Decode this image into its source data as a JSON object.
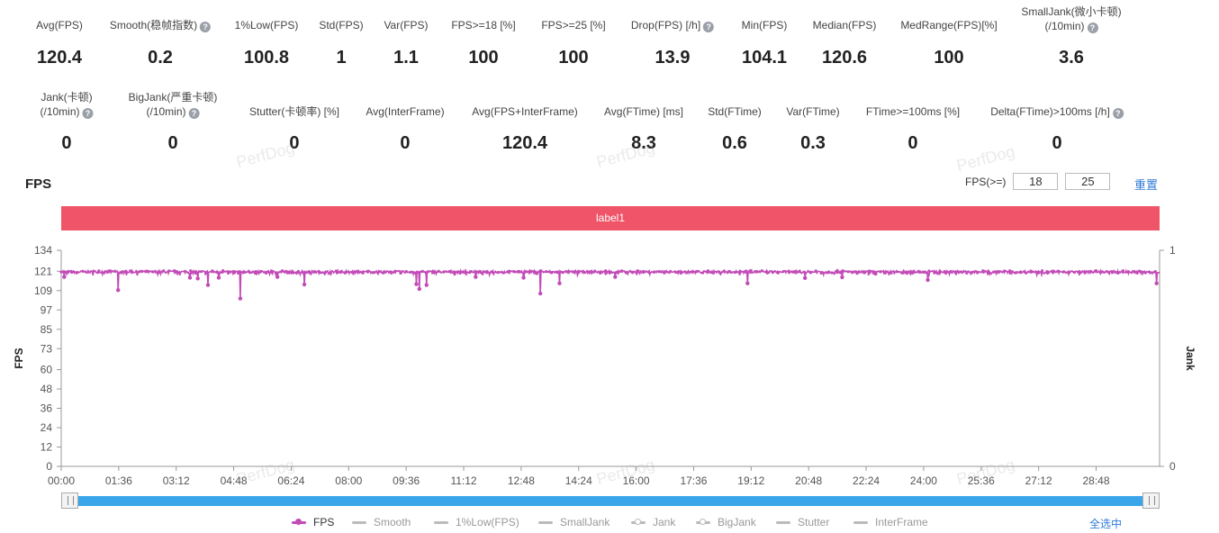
{
  "metrics_row1": [
    {
      "label": "Avg(FPS)",
      "value": "120.4",
      "x": 66,
      "help": false
    },
    {
      "label": "Smooth(稳帧指数)",
      "value": "0.2",
      "x": 178,
      "help": true
    },
    {
      "label": "1%Low(FPS)",
      "value": "100.8",
      "x": 296,
      "help": false
    },
    {
      "label": "Std(FPS)",
      "value": "1",
      "x": 379,
      "help": false
    },
    {
      "label": "Var(FPS)",
      "value": "1.1",
      "x": 451,
      "help": false
    },
    {
      "label": "FPS>=18 [%]",
      "value": "100",
      "x": 537,
      "help": false
    },
    {
      "label": "FPS>=25 [%]",
      "value": "100",
      "x": 637,
      "help": false
    },
    {
      "label": "Drop(FPS) [/h]",
      "value": "13.9",
      "x": 747,
      "help": true
    },
    {
      "label": "Min(FPS)",
      "value": "104.1",
      "x": 849,
      "help": false
    },
    {
      "label": "Median(FPS)",
      "value": "120.6",
      "x": 938,
      "help": false
    },
    {
      "label": "MedRange(FPS)[%]",
      "value": "100",
      "x": 1054,
      "help": false
    }
  ],
  "small_jank": {
    "label_line1": "SmallJank(微小卡顿)",
    "label_line2": "(/10min)",
    "value": "3.6"
  },
  "metrics_row2": [
    {
      "line1": "Jank(卡顿)",
      "line2": "(/10min)",
      "value": "0",
      "x": 74,
      "help": true
    },
    {
      "line1": "BigJank(严重卡顿)",
      "line2": "(/10min)",
      "value": "0",
      "x": 192,
      "help": true
    },
    {
      "line1": "",
      "line2": "Stutter(卡顿率) [%]",
      "value": "0",
      "x": 327,
      "help": false
    },
    {
      "line1": "",
      "line2": "Avg(InterFrame)",
      "value": "0",
      "x": 450,
      "help": false
    },
    {
      "line1": "",
      "line2": "Avg(FPS+InterFrame)",
      "value": "120.4",
      "x": 583,
      "help": false
    },
    {
      "line1": "",
      "line2": "Avg(FTime) [ms]",
      "value": "8.3",
      "x": 715,
      "help": false
    },
    {
      "line1": "",
      "line2": "Std(FTime)",
      "value": "0.6",
      "x": 816,
      "help": false
    },
    {
      "line1": "",
      "line2": "Var(FTime)",
      "value": "0.3",
      "x": 903,
      "help": false
    },
    {
      "line1": "",
      "line2": "FTime>=100ms [%]",
      "value": "0",
      "x": 1014,
      "help": false
    },
    {
      "line1": "",
      "line2": "Delta(FTime)>100ms [/h]",
      "value": "0",
      "x": 1174,
      "help": true
    }
  ],
  "watermark_text": "PerfDog",
  "chart_title": "FPS",
  "fps_threshold": {
    "label": "FPS(>=)",
    "value1": "18",
    "value2": "25",
    "reset_label": "重置"
  },
  "label_band": "label1",
  "legend": [
    {
      "name": "FPS",
      "active": true,
      "color": "#c24bb7",
      "marker": "dot",
      "x": 324
    },
    {
      "name": "Smooth",
      "active": false,
      "marker": "line",
      "x": 391
    },
    {
      "name": "1%Low(FPS)",
      "active": false,
      "marker": "line",
      "x": 482
    },
    {
      "name": "SmallJank",
      "active": false,
      "marker": "line",
      "x": 598
    },
    {
      "name": "Jank",
      "active": false,
      "marker": "ring",
      "x": 701
    },
    {
      "name": "BigJank",
      "active": false,
      "marker": "ring",
      "x": 773
    },
    {
      "name": "Stutter",
      "active": false,
      "marker": "line",
      "x": 862
    },
    {
      "name": "InterFrame",
      "active": false,
      "marker": "line",
      "x": 948
    }
  ],
  "select_all_label": "全选中",
  "chart_data": {
    "type": "line",
    "title": "FPS",
    "ylabel": "FPS",
    "y2label": "Jank",
    "ylim": [
      0,
      134
    ],
    "yticks": [
      0,
      12,
      24,
      36,
      48,
      60,
      73,
      85,
      97,
      109,
      121,
      134
    ],
    "y2lim": [
      0,
      1
    ],
    "y2ticks": [
      0,
      1
    ],
    "xlim_seconds": [
      0,
      1834
    ],
    "xtick_labels": [
      "00:00",
      "01:36",
      "03:12",
      "04:48",
      "06:24",
      "08:00",
      "09:36",
      "11:12",
      "12:48",
      "14:24",
      "16:00",
      "17:36",
      "19:12",
      "20:48",
      "22:24",
      "24:00",
      "25:36",
      "27:12",
      "28:48"
    ],
    "xtick_seconds": [
      0,
      96,
      192,
      288,
      384,
      480,
      576,
      672,
      768,
      864,
      960,
      1056,
      1152,
      1248,
      1344,
      1440,
      1536,
      1632,
      1728
    ],
    "baseline_fps": 120.6,
    "series": [
      {
        "name": "FPS",
        "color": "#c24bb7",
        "dips": [
          {
            "t": 5,
            "v": 117.5
          },
          {
            "t": 95,
            "v": 109.3
          },
          {
            "t": 215,
            "v": 117
          },
          {
            "t": 228,
            "v": 116.5
          },
          {
            "t": 245,
            "v": 112.5
          },
          {
            "t": 263,
            "v": 117
          },
          {
            "t": 299,
            "v": 104.1
          },
          {
            "t": 361,
            "v": 117.5
          },
          {
            "t": 406,
            "v": 112.8
          },
          {
            "t": 593,
            "v": 113
          },
          {
            "t": 598,
            "v": 110
          },
          {
            "t": 610,
            "v": 112.5
          },
          {
            "t": 692,
            "v": 117.5
          },
          {
            "t": 772,
            "v": 117
          },
          {
            "t": 800,
            "v": 107.2
          },
          {
            "t": 832,
            "v": 113.5
          },
          {
            "t": 925,
            "v": 117.5
          },
          {
            "t": 1146,
            "v": 113.5
          },
          {
            "t": 1242,
            "v": 116.8
          },
          {
            "t": 1304,
            "v": 117.3
          },
          {
            "t": 1447,
            "v": 115.6
          },
          {
            "t": 1829,
            "v": 113.5
          }
        ]
      }
    ],
    "legend_position": "bottom",
    "grid": false
  }
}
